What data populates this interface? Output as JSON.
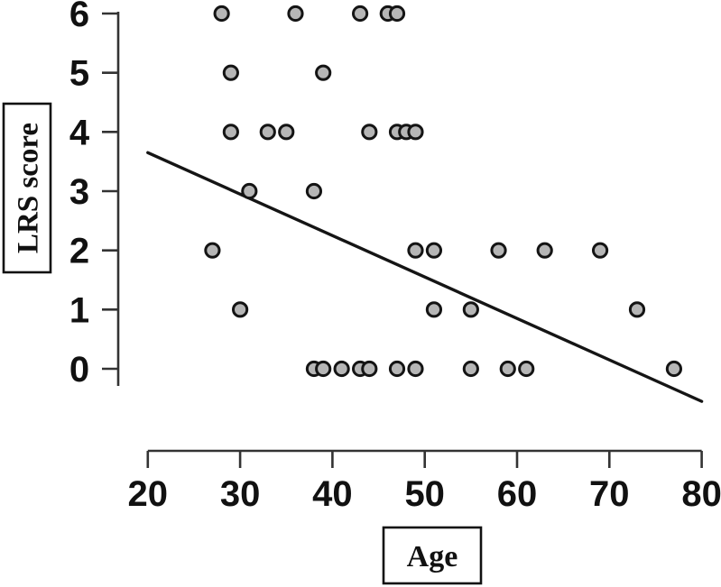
{
  "figure": {
    "background": "#ffffff"
  },
  "chart_data": {
    "type": "scatter",
    "title": "",
    "xlabel": "Age",
    "ylabel": "LRS score",
    "xlim": [
      20,
      80
    ],
    "ylim": [
      0,
      6
    ],
    "xticks": [
      20,
      30,
      40,
      50,
      60,
      70,
      80
    ],
    "yticks": [
      0,
      1,
      2,
      3,
      4,
      5,
      6
    ],
    "grid": false,
    "legend": "none",
    "points": [
      {
        "age": 28,
        "score": 6
      },
      {
        "age": 36,
        "score": 6
      },
      {
        "age": 43,
        "score": 6
      },
      {
        "age": 46,
        "score": 6
      },
      {
        "age": 47,
        "score": 6
      },
      {
        "age": 29,
        "score": 5
      },
      {
        "age": 39,
        "score": 5
      },
      {
        "age": 29,
        "score": 4
      },
      {
        "age": 33,
        "score": 4
      },
      {
        "age": 35,
        "score": 4
      },
      {
        "age": 44,
        "score": 4
      },
      {
        "age": 47,
        "score": 4
      },
      {
        "age": 48,
        "score": 4
      },
      {
        "age": 49,
        "score": 4
      },
      {
        "age": 31,
        "score": 3
      },
      {
        "age": 38,
        "score": 3
      },
      {
        "age": 27,
        "score": 2
      },
      {
        "age": 49,
        "score": 2
      },
      {
        "age": 51,
        "score": 2
      },
      {
        "age": 58,
        "score": 2
      },
      {
        "age": 63,
        "score": 2
      },
      {
        "age": 69,
        "score": 2
      },
      {
        "age": 30,
        "score": 1
      },
      {
        "age": 51,
        "score": 1
      },
      {
        "age": 55,
        "score": 1
      },
      {
        "age": 73,
        "score": 1
      },
      {
        "age": 38,
        "score": 0
      },
      {
        "age": 39,
        "score": 0
      },
      {
        "age": 41,
        "score": 0
      },
      {
        "age": 43,
        "score": 0
      },
      {
        "age": 44,
        "score": 0
      },
      {
        "age": 47,
        "score": 0
      },
      {
        "age": 49,
        "score": 0
      },
      {
        "age": 55,
        "score": 0
      },
      {
        "age": 59,
        "score": 0
      },
      {
        "age": 61,
        "score": 0
      },
      {
        "age": 77,
        "score": 0
      }
    ],
    "trendline": {
      "x1": 20,
      "y1": 3.65,
      "x2": 80,
      "y2": -0.55
    },
    "colors": {
      "point_fill": "#b6b6b6",
      "point_stroke": "#141414",
      "trend_line": "#151515",
      "axis": "#333333",
      "text": "#111111"
    }
  }
}
